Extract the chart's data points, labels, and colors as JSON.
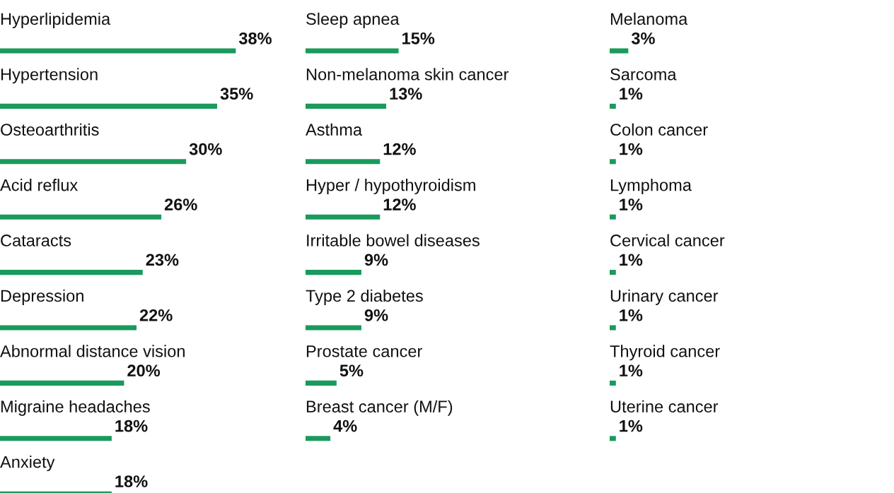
{
  "chart_data": [
    {
      "type": "bar",
      "orientation": "horizontal",
      "data_labels": true,
      "color": "#1a9a5c",
      "categories": [
        "Hyperlipidemia",
        "Hypertension",
        "Osteoarthritis",
        "Acid reflux",
        "Cataracts",
        "Depression",
        "Abnormal distance vision",
        "Migraine headaches",
        "Anxiety"
      ],
      "values": [
        38,
        35,
        30,
        26,
        23,
        22,
        20,
        18,
        18
      ],
      "value_labels": [
        "38%",
        "35%",
        "30%",
        "26%",
        "23%",
        "22%",
        "20%",
        "18%",
        "18%"
      ]
    },
    {
      "type": "bar",
      "orientation": "horizontal",
      "data_labels": true,
      "color": "#1a9a5c",
      "categories": [
        "Sleep apnea",
        "Non-melanoma skin cancer",
        "Asthma",
        "Hyper / hypothyroidism",
        "Irritable bowel diseases",
        "Type 2 diabetes",
        "Prostate cancer",
        "Breast cancer (M/F)"
      ],
      "values": [
        15,
        13,
        12,
        12,
        9,
        9,
        5,
        4
      ],
      "value_labels": [
        "15%",
        "13%",
        "12%",
        "12%",
        "9%",
        "9%",
        "5%",
        "4%"
      ]
    },
    {
      "type": "bar",
      "orientation": "horizontal",
      "data_labels": true,
      "color": "#1a9a5c",
      "categories": [
        "Melanoma",
        "Sarcoma",
        "Colon cancer",
        "Lymphoma",
        "Cervical cancer",
        "Urinary cancer",
        "Thyroid cancer",
        "Uterine cancer"
      ],
      "values": [
        3,
        1,
        1,
        1,
        1,
        1,
        1,
        1
      ],
      "value_labels": [
        "3%",
        "1%",
        "1%",
        "1%",
        "1%",
        "1%",
        "1%",
        "1%"
      ]
    }
  ]
}
